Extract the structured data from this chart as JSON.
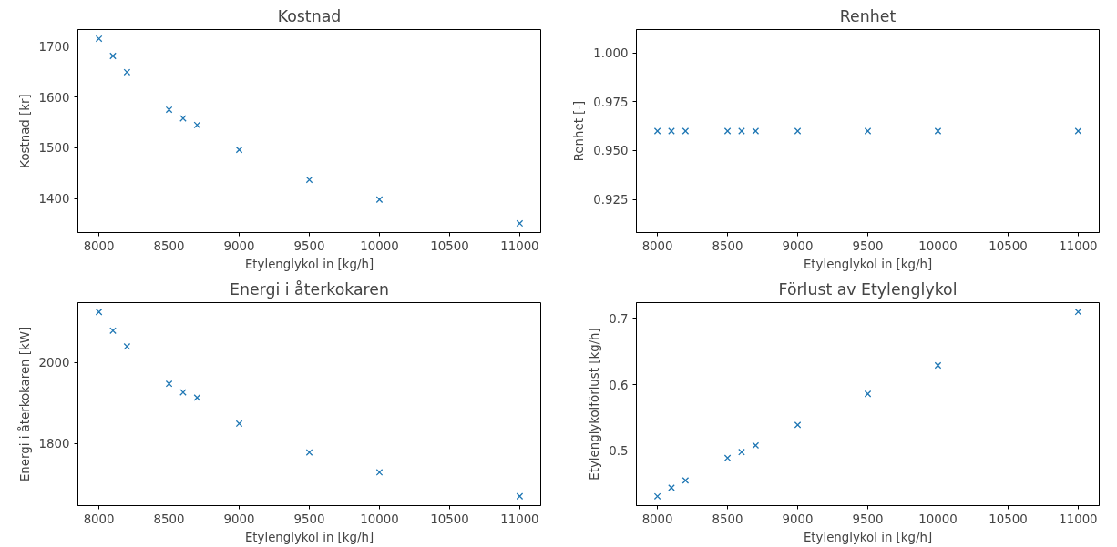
{
  "chart_data": [
    {
      "type": "scatter",
      "title": "Kostnad",
      "xlabel": "Etylenglykol in [kg/h]",
      "ylabel": "Kostnad [kr]",
      "marker": "cross",
      "grid": false,
      "x": [
        8000,
        8100,
        8200,
        8500,
        8600,
        8700,
        9000,
        9500,
        10000,
        11000
      ],
      "series": [
        {
          "color": "#1f77b4",
          "values": [
            1715,
            1681,
            1649,
            1575,
            1558,
            1545,
            1496,
            1437,
            1398,
            1351
          ]
        }
      ],
      "xlim": [
        7850,
        11150
      ],
      "xticks": [
        8000,
        8500,
        9000,
        9500,
        10000,
        10500,
        11000
      ],
      "ylim": [
        1333,
        1733
      ],
      "yticks": [
        1400,
        1500,
        1600,
        1700
      ]
    },
    {
      "type": "scatter",
      "title": "Renhet",
      "xlabel": "Etylenglykol in [kg/h]",
      "ylabel": "Renhet [-]",
      "marker": "cross",
      "grid": false,
      "x": [
        8000,
        8100,
        8200,
        8500,
        8600,
        8700,
        9000,
        9500,
        10000,
        11000
      ],
      "series": [
        {
          "color": "#1f77b4",
          "values": [
            0.96,
            0.96,
            0.96,
            0.96,
            0.96,
            0.96,
            0.96,
            0.96,
            0.96,
            0.96
          ]
        }
      ],
      "xlim": [
        7850,
        11150
      ],
      "xticks": [
        8000,
        8500,
        9000,
        9500,
        10000,
        10500,
        11000
      ],
      "ylim": [
        0.908,
        1.012
      ],
      "yticks": [
        {
          "value": 0.925,
          "label": "0.925"
        },
        {
          "value": 0.95,
          "label": "0.950"
        },
        {
          "value": 0.975,
          "label": "0.975"
        },
        {
          "value": 1.0,
          "label": "1.000"
        }
      ]
    },
    {
      "type": "scatter",
      "title": "Energi i återkokaren",
      "xlabel": "Etylenglykol in [kg/h]",
      "ylabel": "Energi i återkokaren [kW]",
      "marker": "cross",
      "grid": false,
      "x": [
        8000,
        8100,
        8200,
        8500,
        8600,
        8700,
        9000,
        9500,
        10000,
        11000
      ],
      "series": [
        {
          "color": "#1f77b4",
          "values": [
            2124,
            2078,
            2039,
            1947,
            1926,
            1913,
            1849,
            1778,
            1729,
            1670
          ]
        }
      ],
      "xlim": [
        7850,
        11150
      ],
      "xticks": [
        8000,
        8500,
        9000,
        9500,
        10000,
        10500,
        11000
      ],
      "ylim": [
        1647,
        2147
      ],
      "yticks": [
        1800,
        2000
      ]
    },
    {
      "type": "scatter",
      "title": "Förlust av Etylenglykol",
      "xlabel": "Etylenglykol in [kg/h]",
      "ylabel": "Etylenglykolförlust [kg/h]",
      "marker": "cross",
      "grid": false,
      "x": [
        8000,
        8100,
        8200,
        8500,
        8600,
        8700,
        9000,
        9500,
        10000,
        11000
      ],
      "series": [
        {
          "color": "#1f77b4",
          "values": [
            0.431,
            0.444,
            0.455,
            0.489,
            0.498,
            0.508,
            0.539,
            0.586,
            0.629,
            0.71
          ]
        }
      ],
      "xlim": [
        7850,
        11150
      ],
      "xticks": [
        8000,
        8500,
        9000,
        9500,
        10000,
        10500,
        11000
      ],
      "ylim": [
        0.417,
        0.724
      ],
      "yticks": [
        0.5,
        0.6,
        0.7
      ]
    }
  ]
}
